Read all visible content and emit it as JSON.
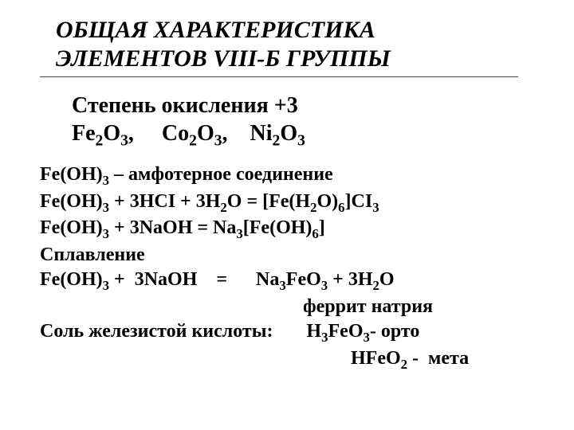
{
  "title": {
    "line1": "ОБЩАЯ ХАРАКТЕРИСТИКА",
    "line2": "ЭЛЕМЕНТОВ VIII-Б ГРУППЫ"
  },
  "subtitle": {
    "line1": "Степень окисления +3",
    "line2_html": "Fe<sub>2</sub>O<sub>3</sub>,&nbsp;&nbsp;&nbsp;&nbsp;&nbsp;Co<sub>2</sub>O<sub>3</sub>,&nbsp;&nbsp;&nbsp;&nbsp;Ni<sub>2</sub>O<sub>3</sub>"
  },
  "body": {
    "l1_html": "Fe(OH)<sub>3</sub> – амфотерное соединение",
    "l2_html": "Fe(OH)<sub>3</sub> + 3HCI + 3H<sub>2</sub>O = [Fe(H<sub>2</sub>O)<sub>6</sub>]CI<sub>3</sub>",
    "l3_html": "Fe(OH)<sub>3</sub> + 3NaOH = Na<sub>3</sub>[Fe(OH)<sub>6</sub>]",
    "l4": "Сплавление",
    "l5_html": "Fe(OH)<sub>3</sub> +&nbsp;&nbsp;3NaOH&nbsp;&nbsp;&nbsp;&nbsp;=&nbsp;&nbsp;&nbsp;&nbsp;&nbsp;&nbsp;Na<sub>3</sub>FeO<sub>3</sub> + 3H<sub>2</sub>O",
    "l6": "феррит  натрия",
    "l7_html": "Соль железистой кислоты:&nbsp;&nbsp;&nbsp;&nbsp;&nbsp;&nbsp;&nbsp;H<sub>3</sub>FeO<sub>3</sub>- орто",
    "l8_html": "HFeO<sub>2</sub> -&nbsp;&nbsp;мета"
  },
  "style": {
    "title_fontsize": 30,
    "subtitle_fontsize": 28,
    "body_fontsize": 24,
    "text_color": "#000000",
    "bg_color": "#ffffff",
    "font_family": "Times New Roman"
  }
}
